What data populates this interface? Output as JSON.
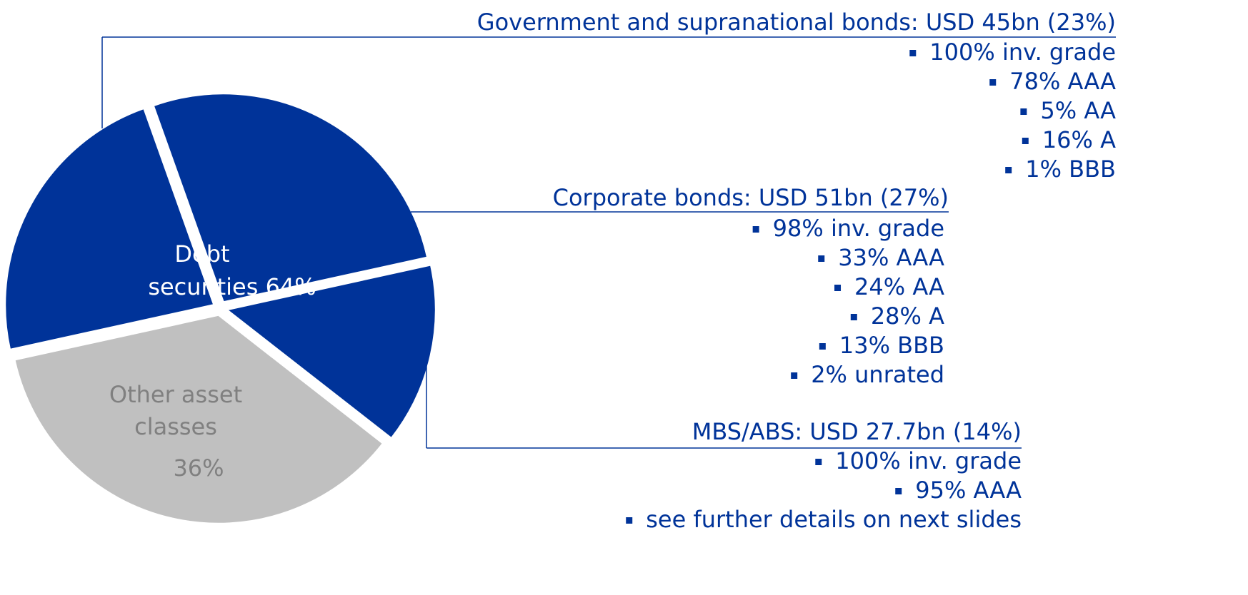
{
  "chart_data": {
    "type": "pie",
    "group_label": [
      "Debt",
      "securities 64%"
    ],
    "slices": [
      {
        "name": "Government and supranational bonds: USD 45bn (23%)",
        "value": 23,
        "color": "#003399",
        "details": [
          "100% inv. grade",
          "78% AAA",
          "5% AA",
          "16% A",
          "1% BBB"
        ]
      },
      {
        "name": "Corporate bonds: USD 51bn (27%)",
        "value": 27,
        "color": "#003399",
        "details": [
          "98% inv. grade",
          "33% AAA",
          "24% AA",
          "28% A",
          "13% BBB",
          "2% unrated"
        ]
      },
      {
        "name": "MBS/ABS: USD 27.7bn (14%)",
        "value": 14,
        "color": "#003399",
        "details": [
          "100% inv. grade",
          "95% AAA",
          "see further details on next slides"
        ]
      },
      {
        "label_lines": [
          "Other asset",
          "classes"
        ],
        "value": 36,
        "value_labels": "36%",
        "color": "#c0c0c0"
      }
    ]
  }
}
